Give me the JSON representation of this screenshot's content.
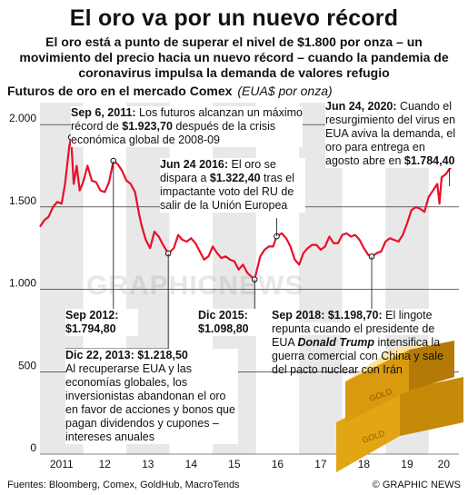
{
  "title": "El oro va por un nuevo récord",
  "subtitle": "El oro está a punto de superar el nivel de $1.800 por onza – un movimiento del precio hacia un nuevo récord – cuando la pandemia de coronavirus impulsa la demanda de valores refugio",
  "chart_header": {
    "label": "Futuros de oro en el mercado Comex",
    "unit": "(EUA$ por onza)"
  },
  "annotations": {
    "sep2011": {
      "date": "Sep 6, 2011:",
      "text1": " Los futuros alcanzan un máximo récord de ",
      "value": "$1.923,70",
      "text2": " después de la crisis económica global de 2008-09"
    },
    "jun2016": {
      "date": "Jun 24 2016:",
      "text1": " El oro se dispara a ",
      "value": "$1.322,40",
      "text2": " tras el impactante voto del RU de salir de la Unión Europea"
    },
    "jun2020": {
      "date": "Jun 24, 2020:",
      "text1": " Cuando el resurgimiento del virus en EUA aviva la demanda, el oro para entrega en agosto abre en ",
      "value": "$1.784,40"
    },
    "sep2012": {
      "date": "Sep 2012:",
      "value": "$1.794,80"
    },
    "dic2013": {
      "date": "Dic 22, 2013:",
      "value": "$1.218,50",
      "text": "Al recuperarse EUA y las economías globales, los inversionistas abandonan el oro en favor de acciones y bonos que pagan dividendos y cupones – intereses  anuales"
    },
    "dic2015": {
      "date": "Dic 2015:",
      "value": "$1.098,80"
    },
    "sep2018": {
      "date": "Sep 2018:",
      "value": "$1.198,70:",
      "text1": " El lingote repunta cuando el presidente de EUA ",
      "name": "Donald Trump",
      "text2": " intensifica la guerra comercial con China y sale del pacto nuclear con Irán"
    }
  },
  "footer": {
    "sources": "Fuentes: Bloomberg, Comex, GoldHub, MacroTends",
    "credit": "© GRAPHIC NEWS"
  },
  "watermark": "GRAPHICNEWS",
  "colors": {
    "line": "#e8102a",
    "band": "#e8e8e8",
    "gold": "#e2a514"
  },
  "chart_data": {
    "type": "line",
    "ylim": [
      0,
      2100
    ],
    "yticks": [
      0,
      500,
      1000,
      1500,
      2000
    ],
    "ytick_labels": [
      "0",
      "500",
      "1.000",
      "1.500",
      "2.000"
    ],
    "x_labels": [
      "2011",
      "12",
      "13",
      "14",
      "15",
      "16",
      "17",
      "18",
      "19",
      "20"
    ],
    "xlim": [
      2011.0,
      2020.7
    ],
    "series": [
      {
        "x": [
          2011.0,
          2011.1,
          2011.2,
          2011.3,
          2011.4,
          2011.5,
          2011.58,
          2011.68,
          2011.72,
          2011.78,
          2011.85,
          2011.92,
          2012.0,
          2012.1,
          2012.2,
          2012.3,
          2012.4,
          2012.5,
          2012.6,
          2012.7,
          2012.8,
          2012.9,
          2013.0,
          2013.1,
          2013.2,
          2013.3,
          2013.35,
          2013.45,
          2013.55,
          2013.65,
          2013.75,
          2013.85,
          2013.97,
          2014.1,
          2014.2,
          2014.3,
          2014.4,
          2014.5,
          2014.6,
          2014.7,
          2014.8,
          2014.9,
          2015.0,
          2015.1,
          2015.2,
          2015.3,
          2015.4,
          2015.5,
          2015.6,
          2015.7,
          2015.8,
          2015.97,
          2016.1,
          2016.2,
          2016.3,
          2016.4,
          2016.48,
          2016.6,
          2016.7,
          2016.8,
          2016.9,
          2017.0,
          2017.1,
          2017.2,
          2017.3,
          2017.4,
          2017.5,
          2017.6,
          2017.7,
          2017.8,
          2017.9,
          2018.0,
          2018.1,
          2018.2,
          2018.3,
          2018.4,
          2018.5,
          2018.6,
          2018.68,
          2018.8,
          2018.9,
          2019.0,
          2019.1,
          2019.2,
          2019.3,
          2019.4,
          2019.5,
          2019.6,
          2019.7,
          2019.8,
          2019.9,
          2020.0,
          2020.1,
          2020.2,
          2020.25,
          2020.3,
          2020.4,
          2020.48,
          2020.55,
          2020.6,
          2020.65
        ],
        "y": [
          1380,
          1420,
          1440,
          1500,
          1530,
          1520,
          1640,
          1870,
          1923,
          1640,
          1750,
          1600,
          1650,
          1750,
          1660,
          1650,
          1600,
          1590,
          1650,
          1780,
          1760,
          1720,
          1660,
          1640,
          1590,
          1450,
          1390,
          1300,
          1250,
          1350,
          1320,
          1270,
          1218,
          1250,
          1330,
          1300,
          1290,
          1310,
          1280,
          1230,
          1180,
          1200,
          1260,
          1220,
          1190,
          1200,
          1180,
          1170,
          1120,
          1150,
          1100,
          1060,
          1200,
          1240,
          1260,
          1260,
          1322,
          1340,
          1310,
          1260,
          1180,
          1150,
          1220,
          1250,
          1270,
          1270,
          1240,
          1260,
          1320,
          1280,
          1280,
          1330,
          1340,
          1320,
          1330,
          1300,
          1250,
          1210,
          1199,
          1220,
          1230,
          1290,
          1310,
          1300,
          1290,
          1330,
          1400,
          1480,
          1500,
          1490,
          1470,
          1560,
          1600,
          1640,
          1520,
          1680,
          1700,
          1730,
          1750,
          1784,
          1800
        ]
      }
    ]
  }
}
